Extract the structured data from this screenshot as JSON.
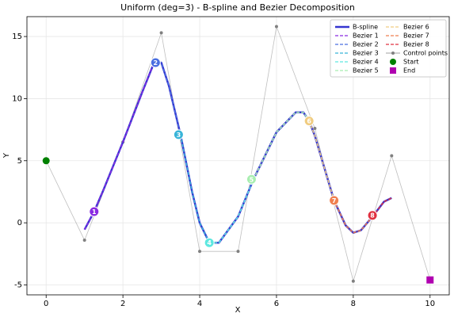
{
  "chart_data": {
    "type": "line",
    "title": "Uniform (deg=3) - B-spline and Bezier Decomposition",
    "x_label": "X",
    "y_label": "Y",
    "xlim": [
      -0.5,
      10.5
    ],
    "ylim": [
      -5.8,
      16.6
    ],
    "xticks": [
      0,
      2,
      4,
      6,
      8,
      10
    ],
    "yticks": [
      -5,
      0,
      5,
      10,
      15
    ],
    "grid": true,
    "legend": "upper right",
    "series": [
      {
        "name": "B-spline",
        "kind": "line",
        "color": "#3535d0",
        "x": [
          1,
          1.25,
          1.5,
          2,
          2.5,
          2.8,
          3.0,
          3.2,
          3.5,
          3.8,
          4.0,
          4.25,
          4.5,
          5.0,
          5.4,
          6.0,
          6.5,
          6.7,
          6.85,
          7.0,
          7.5,
          7.8,
          8.0,
          8.2,
          8.5,
          8.8,
          9.0
        ],
        "values": [
          -0.55,
          0.9,
          2.7,
          6.5,
          10.5,
          12.8,
          12.9,
          11.0,
          7.1,
          2.5,
          0.0,
          -1.6,
          -1.6,
          0.5,
          3.5,
          7.3,
          8.9,
          8.9,
          8.2,
          7.0,
          1.8,
          -0.2,
          -0.8,
          -0.6,
          0.5,
          1.7,
          2.0
        ]
      },
      {
        "name": "Bezier 1",
        "kind": "dashed",
        "color": "#8a2be2",
        "x": [
          1,
          1.25,
          1.5,
          2,
          2.5,
          2.8
        ],
        "values": [
          -0.55,
          0.9,
          2.7,
          6.5,
          10.5,
          12.8
        ],
        "label": "1",
        "label_x": 1.25,
        "label_y": 0.9
      },
      {
        "name": "Bezier 2",
        "kind": "dashed",
        "color": "#4a6fe0",
        "x": [
          2.8,
          3.0,
          3.2,
          3.5
        ],
        "values": [
          12.8,
          12.9,
          11.0,
          7.1
        ],
        "label": "2",
        "label_x": 2.85,
        "label_y": 12.9
      },
      {
        "name": "Bezier 3",
        "kind": "dashed",
        "color": "#38b4d8",
        "x": [
          3.5,
          3.8,
          4.0,
          4.25
        ],
        "values": [
          7.1,
          2.5,
          0.0,
          -1.6
        ],
        "label": "3",
        "label_x": 3.45,
        "label_y": 7.1
      },
      {
        "name": "Bezier 4",
        "kind": "dashed",
        "color": "#5ee8e0",
        "x": [
          4.25,
          4.5,
          5.0,
          5.4
        ],
        "values": [
          -1.6,
          -1.6,
          0.5,
          3.5
        ],
        "label": "4",
        "label_x": 4.25,
        "label_y": -1.6
      },
      {
        "name": "Bezier 5",
        "kind": "dashed",
        "color": "#a8eeb0",
        "x": [
          5.4,
          6.0,
          6.5,
          6.7,
          6.85
        ],
        "values": [
          3.5,
          7.3,
          8.9,
          8.9,
          8.2
        ],
        "label": "5",
        "label_x": 5.35,
        "label_y": 3.5
      },
      {
        "name": "Bezier 6",
        "kind": "dashed",
        "color": "#f0cc80",
        "x": [
          6.85,
          7.0,
          7.5
        ],
        "values": [
          8.2,
          7.0,
          1.8
        ],
        "label": "6",
        "label_x": 6.85,
        "label_y": 8.2
      },
      {
        "name": "Bezier 7",
        "kind": "dashed",
        "color": "#f08050",
        "x": [
          7.5,
          7.8,
          8.0,
          8.2,
          8.5
        ],
        "values": [
          1.8,
          -0.2,
          -0.8,
          -0.6,
          0.5
        ],
        "label": "7",
        "label_x": 7.5,
        "label_y": 1.8
      },
      {
        "name": "Bezier 8",
        "kind": "dashed",
        "color": "#e03040",
        "x": [
          8.5,
          8.8,
          9.0
        ],
        "values": [
          0.5,
          1.7,
          2.0
        ],
        "label": "8",
        "label_x": 8.5,
        "label_y": 0.6
      },
      {
        "name": "Control points",
        "kind": "polygon",
        "color": "#808080",
        "x": [
          0,
          1,
          2,
          3,
          4,
          5,
          6,
          7,
          8,
          9,
          10
        ],
        "values": [
          5,
          -1.4,
          6.5,
          15.3,
          -2.3,
          -2.3,
          15.8,
          7.6,
          -4.7,
          5.4,
          -4.6
        ]
      },
      {
        "name": "Start",
        "kind": "circle",
        "color": "#008000",
        "x": [
          0
        ],
        "values": [
          5
        ]
      },
      {
        "name": "End",
        "kind": "square",
        "color": "#b000b0",
        "x": [
          10
        ],
        "values": [
          -4.6
        ]
      }
    ]
  }
}
